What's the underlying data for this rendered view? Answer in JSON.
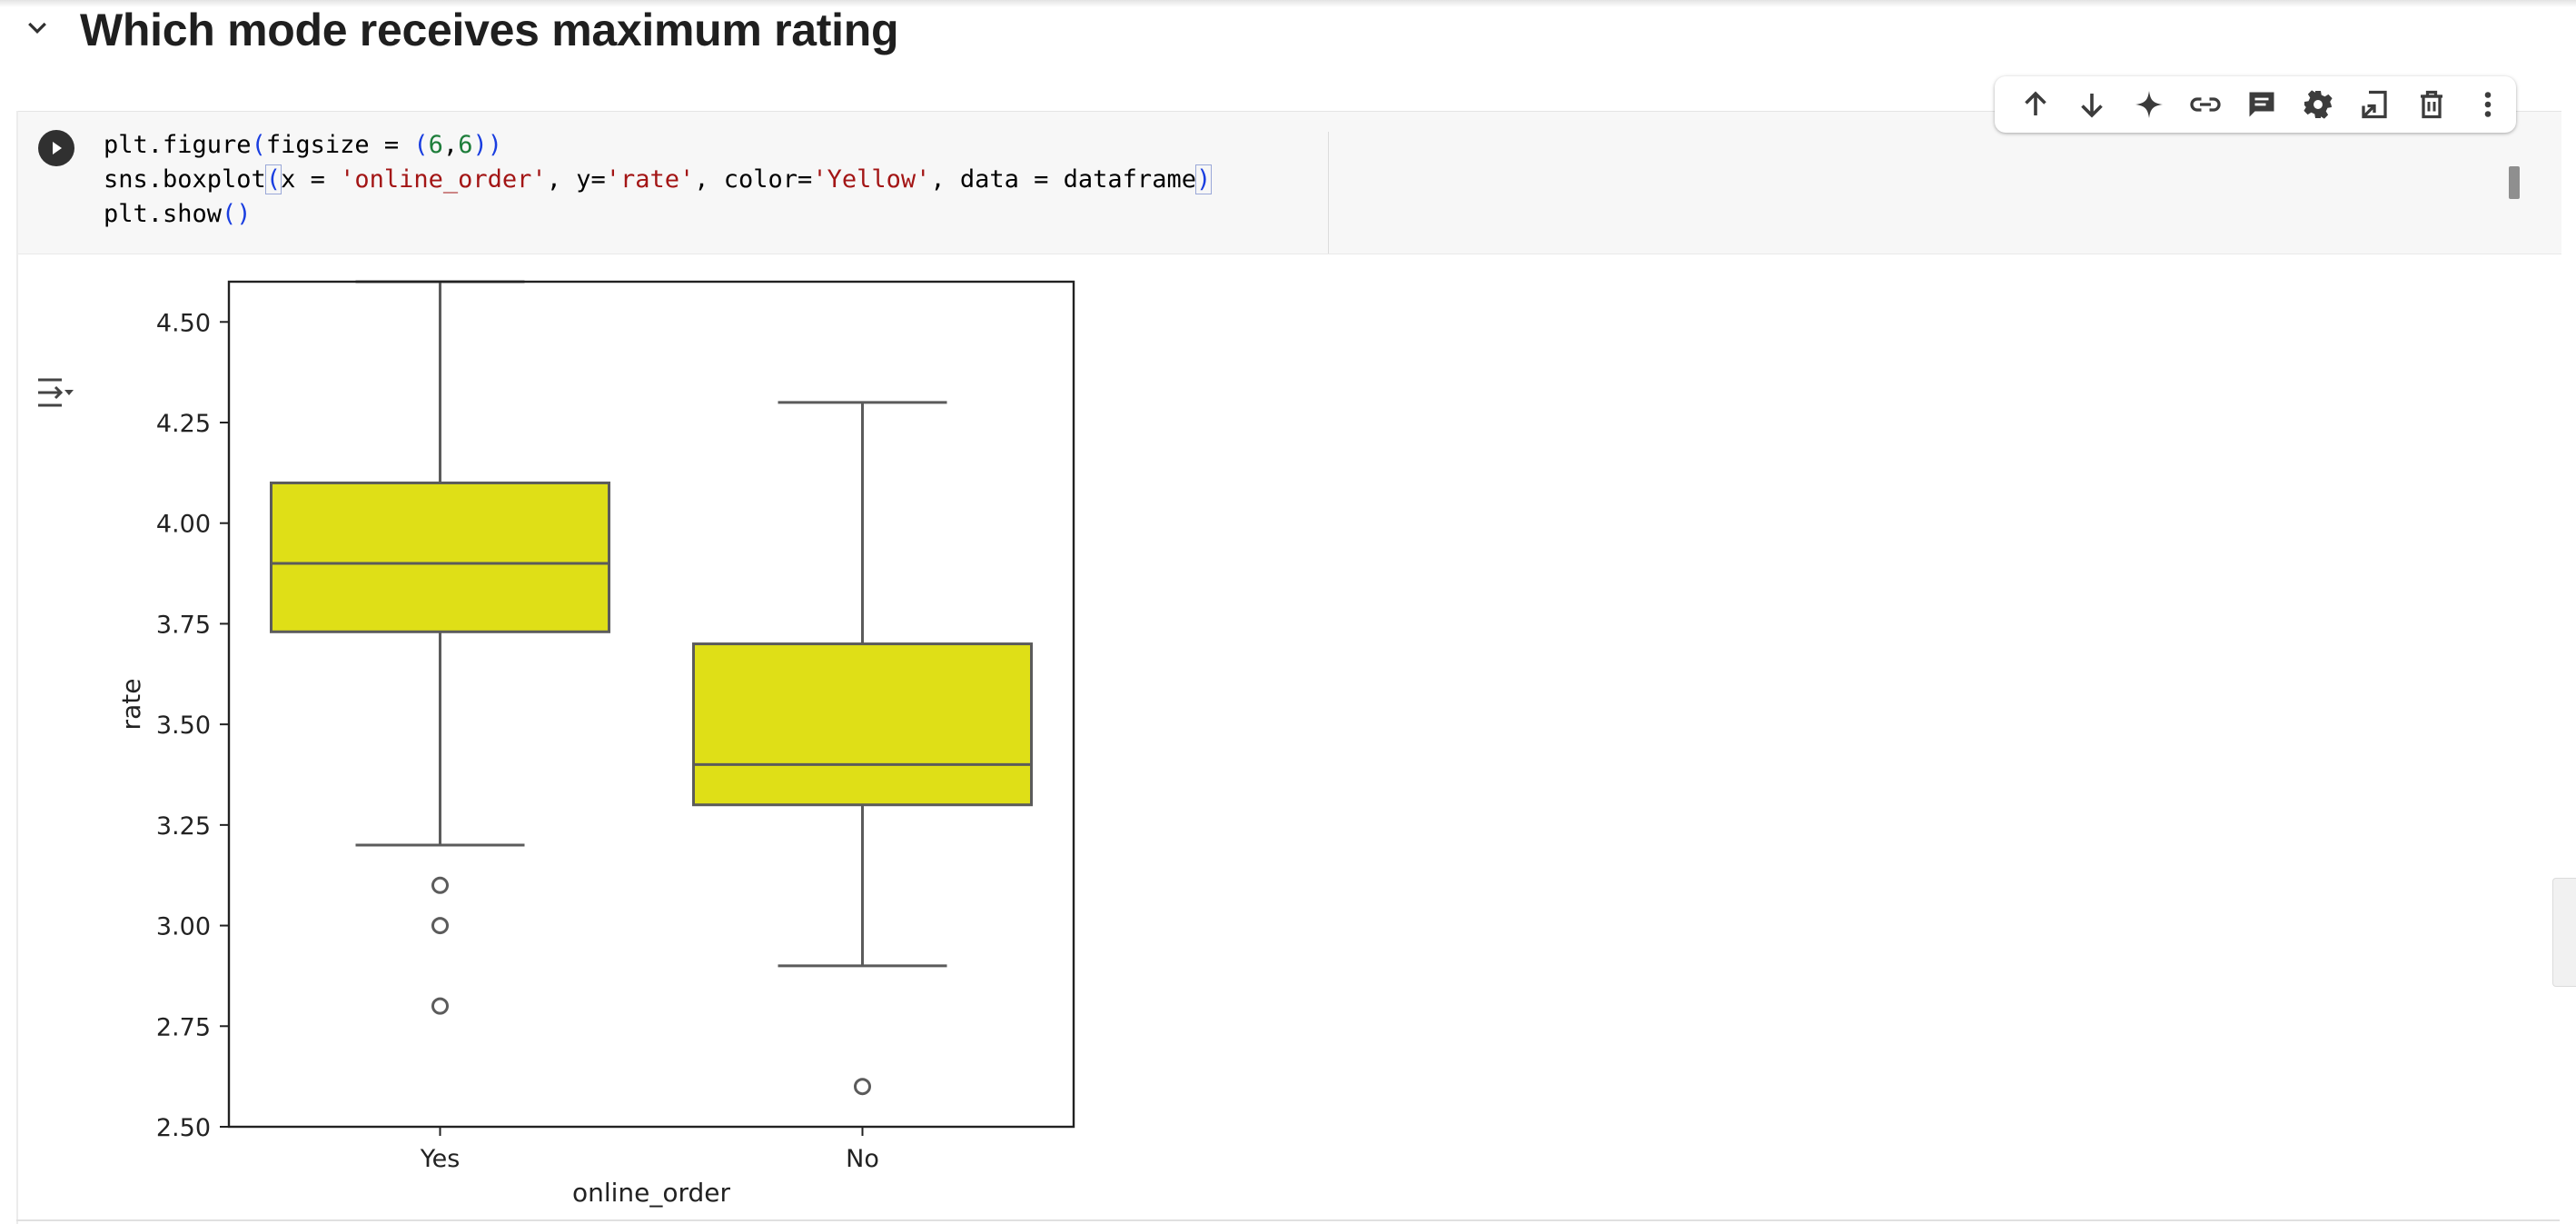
{
  "section": {
    "title": "Which mode receives maximum rating"
  },
  "cell": {
    "code_lines": [
      [
        {
          "t": "plt.figure"
        },
        {
          "t": "(",
          "c": "par"
        },
        {
          "t": "figsize = "
        },
        {
          "t": "(",
          "c": "par"
        },
        {
          "t": "6",
          "c": "num"
        },
        {
          "t": ","
        },
        {
          "t": "6",
          "c": "num"
        },
        {
          "t": ")",
          "c": "par"
        },
        {
          "t": ")",
          "c": "par"
        }
      ],
      [
        {
          "t": "sns.boxplot"
        },
        {
          "t": "(",
          "c": "par",
          "box": true
        },
        {
          "t": "x = "
        },
        {
          "t": "'online_order'",
          "c": "str"
        },
        {
          "t": ", y="
        },
        {
          "t": "'rate'",
          "c": "str"
        },
        {
          "t": ", color="
        },
        {
          "t": "'Yellow'",
          "c": "str"
        },
        {
          "t": ", data = dataframe"
        },
        {
          "t": ")",
          "c": "par",
          "box": true
        }
      ],
      [
        {
          "t": "plt.show"
        },
        {
          "t": "()",
          "c": "par"
        }
      ]
    ]
  },
  "toolbar": {
    "buttons": [
      {
        "name": "move-up-button",
        "icon": "arrow-up-icon"
      },
      {
        "name": "move-down-button",
        "icon": "arrow-down-icon"
      },
      {
        "name": "gemini-button",
        "icon": "sparkle-icon"
      },
      {
        "name": "link-button",
        "icon": "link-icon"
      },
      {
        "name": "comment-button",
        "icon": "comment-icon"
      },
      {
        "name": "settings-button",
        "icon": "gear-icon"
      },
      {
        "name": "mirror-cell-button",
        "icon": "open-in-tab-icon"
      },
      {
        "name": "delete-button",
        "icon": "trash-icon"
      },
      {
        "name": "more-button",
        "icon": "more-vert-icon"
      }
    ]
  },
  "chart_data": {
    "type": "box",
    "title": "",
    "xlabel": "online_order",
    "ylabel": "rate",
    "ylim": [
      2.5,
      4.6
    ],
    "yticks": [
      "2.50",
      "2.75",
      "3.00",
      "3.25",
      "3.50",
      "3.75",
      "4.00",
      "4.25",
      "4.50"
    ],
    "box_color": "#dfdf17",
    "categories": [
      "Yes",
      "No"
    ],
    "boxes": [
      {
        "category": "Yes",
        "whisker_low": 3.2,
        "q1": 3.73,
        "median": 3.9,
        "q3": 4.1,
        "whisker_high": 4.6,
        "outliers": [
          3.1,
          3.0,
          2.8
        ]
      },
      {
        "category": "No",
        "whisker_low": 2.9,
        "q1": 3.3,
        "median": 3.4,
        "q3": 3.7,
        "whisker_high": 4.3,
        "outliers": [
          2.6
        ]
      }
    ]
  }
}
